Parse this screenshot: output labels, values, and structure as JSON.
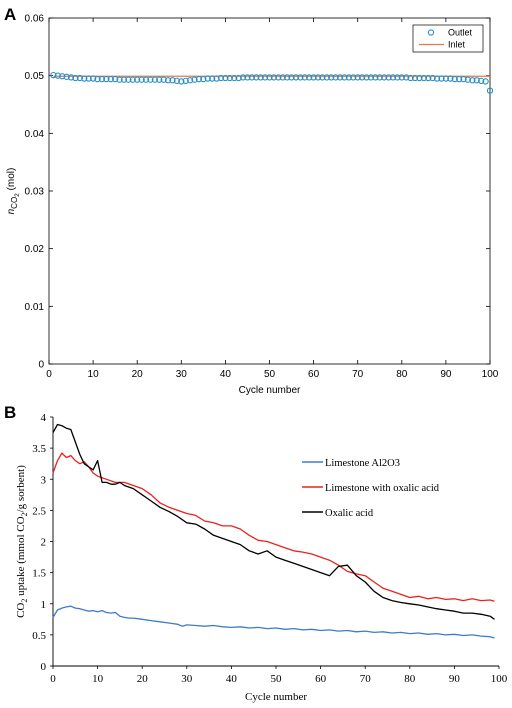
{
  "chart_data": [
    {
      "panel": "A",
      "type": "scatter",
      "xlabel": "Cycle number",
      "ylabel_main": "n",
      "ylabel_sub": "CO",
      "ylabel_subsub": "2",
      "ylabel_unit": "(mol)",
      "xlim": [
        0,
        100
      ],
      "ylim": [
        0,
        0.06
      ],
      "xticks": [
        "0",
        "10",
        "20",
        "30",
        "40",
        "50",
        "60",
        "70",
        "80",
        "90",
        "100"
      ],
      "yticks": [
        "0",
        "0.01",
        "0.02",
        "0.03",
        "0.04",
        "0.05",
        "0.06"
      ],
      "legend_position": "top-right",
      "grid": false,
      "series": [
        {
          "name": "Outlet",
          "style": "markers",
          "color": "#2a8fc7",
          "x": [
            1,
            2,
            3,
            4,
            5,
            6,
            7,
            8,
            9,
            10,
            11,
            12,
            13,
            14,
            15,
            16,
            17,
            18,
            19,
            20,
            21,
            22,
            23,
            24,
            25,
            26,
            27,
            28,
            29,
            30,
            31,
            32,
            33,
            34,
            35,
            36,
            37,
            38,
            39,
            40,
            41,
            42,
            43,
            44,
            45,
            46,
            47,
            48,
            49,
            50,
            51,
            52,
            53,
            54,
            55,
            56,
            57,
            58,
            59,
            60,
            61,
            62,
            63,
            64,
            65,
            66,
            67,
            68,
            69,
            70,
            71,
            72,
            73,
            74,
            75,
            76,
            77,
            78,
            79,
            80,
            81,
            82,
            83,
            84,
            85,
            86,
            87,
            88,
            89,
            90,
            91,
            92,
            93,
            94,
            95,
            96,
            97,
            98,
            99,
            100
          ],
          "y": [
            0.0501,
            0.05,
            0.0499,
            0.0498,
            0.0497,
            0.0496,
            0.0496,
            0.0495,
            0.0495,
            0.0495,
            0.0494,
            0.0494,
            0.0494,
            0.0494,
            0.0494,
            0.0493,
            0.0493,
            0.0493,
            0.0493,
            0.0493,
            0.0493,
            0.0493,
            0.0493,
            0.0493,
            0.0493,
            0.0493,
            0.0492,
            0.0492,
            0.0491,
            0.049,
            0.0491,
            0.0492,
            0.0493,
            0.0494,
            0.0494,
            0.0495,
            0.0495,
            0.0495,
            0.0496,
            0.0496,
            0.0496,
            0.0496,
            0.0496,
            0.0497,
            0.0497,
            0.0497,
            0.0497,
            0.0497,
            0.0497,
            0.0497,
            0.0497,
            0.0497,
            0.0497,
            0.0497,
            0.0497,
            0.0497,
            0.0497,
            0.0497,
            0.0497,
            0.0497,
            0.0497,
            0.0497,
            0.0497,
            0.0497,
            0.0497,
            0.0497,
            0.0497,
            0.0497,
            0.0497,
            0.0497,
            0.0497,
            0.0497,
            0.0497,
            0.0497,
            0.0497,
            0.0497,
            0.0497,
            0.0497,
            0.0497,
            0.0497,
            0.0497,
            0.0496,
            0.0496,
            0.0496,
            0.0496,
            0.0496,
            0.0496,
            0.0495,
            0.0495,
            0.0495,
            0.0495,
            0.0494,
            0.0494,
            0.0494,
            0.0493,
            0.0492,
            0.0492,
            0.0491,
            0.049,
            0.0474
          ]
        },
        {
          "name": "Inlet",
          "style": "line",
          "color": "#e07a4a",
          "x": [
            1,
            100
          ],
          "y": [
            0.0499,
            0.0499
          ]
        }
      ]
    },
    {
      "panel": "B",
      "type": "line",
      "xlabel": "Cycle number",
      "ylabel_pre": "CO",
      "ylabel_sub1": "2",
      "ylabel_mid": " uptake (mmol CO",
      "ylabel_sub2": "2",
      "ylabel_post": "/g sorbent)",
      "xlim": [
        0,
        100
      ],
      "ylim": [
        0,
        4
      ],
      "xticks": [
        "0",
        "10",
        "20",
        "30",
        "40",
        "50",
        "60",
        "70",
        "80",
        "90",
        "100"
      ],
      "yticks": [
        "0",
        "0.5",
        "1",
        "1.5",
        "2",
        "2.5",
        "3",
        "3.5",
        "4"
      ],
      "legend_position": "right",
      "grid": false,
      "series": [
        {
          "name": "Limestone Al2O3",
          "color": "#3d7cc9",
          "x": [
            0,
            1,
            2,
            3,
            4,
            5,
            6,
            7,
            8,
            9,
            10,
            11,
            12,
            13,
            14,
            15,
            16,
            17,
            18,
            19,
            20,
            22,
            24,
            26,
            28,
            29,
            30,
            32,
            34,
            36,
            38,
            40,
            42,
            44,
            46,
            48,
            50,
            52,
            54,
            56,
            58,
            60,
            62,
            64,
            66,
            68,
            70,
            72,
            74,
            76,
            78,
            80,
            82,
            84,
            86,
            88,
            90,
            92,
            94,
            96,
            98,
            99
          ],
          "y": [
            0.78,
            0.9,
            0.93,
            0.95,
            0.96,
            0.93,
            0.92,
            0.9,
            0.88,
            0.89,
            0.87,
            0.89,
            0.86,
            0.85,
            0.86,
            0.8,
            0.78,
            0.77,
            0.77,
            0.76,
            0.75,
            0.73,
            0.71,
            0.69,
            0.67,
            0.64,
            0.66,
            0.65,
            0.64,
            0.65,
            0.63,
            0.62,
            0.63,
            0.61,
            0.62,
            0.6,
            0.61,
            0.59,
            0.6,
            0.58,
            0.59,
            0.57,
            0.58,
            0.56,
            0.57,
            0.55,
            0.56,
            0.54,
            0.55,
            0.53,
            0.54,
            0.52,
            0.53,
            0.51,
            0.52,
            0.5,
            0.51,
            0.49,
            0.5,
            0.48,
            0.47,
            0.45
          ]
        },
        {
          "name": "Limestone with oxalic acid",
          "color": "#e8231f",
          "x": [
            0,
            1,
            2,
            3,
            4,
            5,
            6,
            7,
            8,
            9,
            10,
            12,
            14,
            16,
            18,
            20,
            22,
            24,
            26,
            28,
            30,
            32,
            34,
            36,
            38,
            40,
            42,
            44,
            46,
            48,
            50,
            52,
            54,
            56,
            58,
            60,
            62,
            64,
            66,
            68,
            70,
            72,
            74,
            76,
            78,
            80,
            82,
            84,
            86,
            88,
            90,
            92,
            94,
            96,
            98,
            99
          ],
          "y": [
            3.1,
            3.3,
            3.42,
            3.35,
            3.38,
            3.3,
            3.25,
            3.28,
            3.2,
            3.1,
            3.05,
            3.0,
            2.95,
            2.95,
            2.9,
            2.85,
            2.75,
            2.62,
            2.55,
            2.5,
            2.45,
            2.42,
            2.33,
            2.3,
            2.25,
            2.25,
            2.2,
            2.1,
            2.02,
            2.0,
            1.95,
            1.9,
            1.85,
            1.83,
            1.8,
            1.75,
            1.7,
            1.62,
            1.52,
            1.48,
            1.45,
            1.35,
            1.25,
            1.2,
            1.15,
            1.1,
            1.12,
            1.08,
            1.1,
            1.07,
            1.08,
            1.05,
            1.08,
            1.05,
            1.06,
            1.04
          ]
        },
        {
          "name": "Oxalic acid",
          "color": "#000000",
          "x": [
            0,
            1,
            2,
            3,
            4,
            5,
            6,
            7,
            8,
            9,
            10,
            11,
            12,
            13,
            14,
            15,
            16,
            18,
            20,
            22,
            24,
            26,
            28,
            30,
            32,
            34,
            36,
            38,
            40,
            42,
            44,
            46,
            48,
            50,
            52,
            54,
            56,
            58,
            60,
            62,
            64,
            66,
            68,
            70,
            72,
            74,
            76,
            78,
            80,
            82,
            84,
            86,
            88,
            90,
            92,
            94,
            96,
            98,
            99
          ],
          "y": [
            3.75,
            3.88,
            3.86,
            3.82,
            3.8,
            3.6,
            3.4,
            3.25,
            3.2,
            3.15,
            3.3,
            2.95,
            2.95,
            2.92,
            2.92,
            2.95,
            2.9,
            2.85,
            2.75,
            2.65,
            2.55,
            2.48,
            2.4,
            2.3,
            2.28,
            2.2,
            2.1,
            2.05,
            2.0,
            1.95,
            1.85,
            1.8,
            1.85,
            1.75,
            1.7,
            1.65,
            1.6,
            1.55,
            1.5,
            1.45,
            1.6,
            1.62,
            1.45,
            1.35,
            1.2,
            1.1,
            1.05,
            1.02,
            1.0,
            0.98,
            0.95,
            0.92,
            0.9,
            0.88,
            0.85,
            0.85,
            0.83,
            0.8,
            0.75
          ]
        }
      ]
    }
  ]
}
